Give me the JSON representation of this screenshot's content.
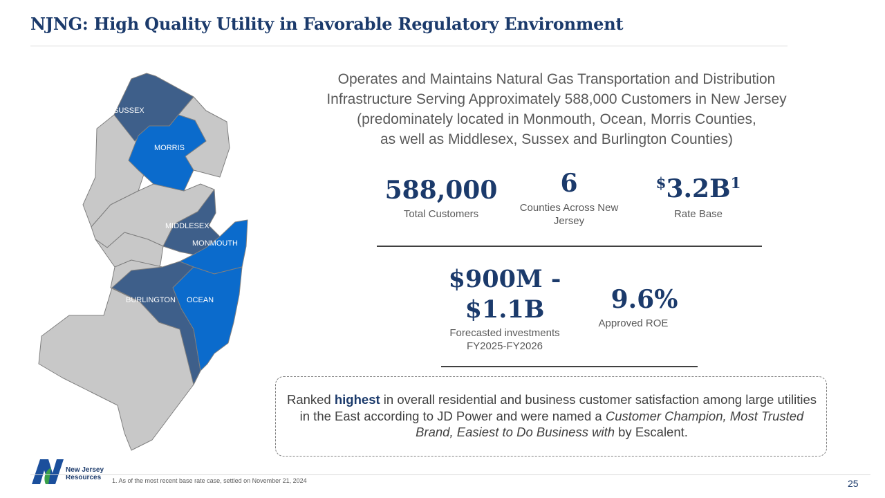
{
  "title": "NJNG: High Quality Utility in Favorable Regulatory Environment",
  "intro": {
    "line1": "Operates and Maintains Natural Gas Transportation and Distribution",
    "line2": "Infrastructure Serving Approximately 588,000 Customers in New Jersey",
    "line3": "(predominately located in Monmouth, Ocean, Morris Counties,",
    "line4": "as well as Middlesex, Sussex and Burlington Counties)"
  },
  "stats": {
    "customers": {
      "value": "588,000",
      "label": "Total Customers"
    },
    "counties": {
      "value": "6",
      "label_line1": "Counties Across New",
      "label_line2": "Jersey"
    },
    "rate_base": {
      "prefix": "$",
      "value": "3.2B",
      "footnote_marker": "1",
      "label": "Rate Base"
    },
    "investments": {
      "value_line1": "$900M -",
      "value_line2": "$1.1B",
      "label_line1": "Forecasted investments",
      "label_line2": "FY2025-FY2026"
    },
    "roe": {
      "value": "9.6%",
      "label": "Approved ROE"
    }
  },
  "callout": {
    "part1": "Ranked ",
    "bold": "highest",
    "part2": " in overall residential and business customer satisfaction among large utilities in the East according to JD Power and were named a ",
    "italic": "Customer Champion, Most Trusted Brand, Easiest to Do Business with",
    "part3": " by Escalent."
  },
  "map": {
    "counties": {
      "sussex": "SUSSEX",
      "morris": "MORRIS",
      "middlesex": "MIDDLESEX",
      "monmouth": "MONMOUTH",
      "burlington": "BURLINGTON",
      "ocean": "OCEAN"
    },
    "colors": {
      "dark": "#3e5f8a",
      "bright": "#0b6bcc",
      "grey": "#c8c8c8",
      "outline": "#7f7f7f"
    }
  },
  "logo": {
    "line1": "New Jersey",
    "line2": "Resources",
    "letter": "N"
  },
  "footnote": "1.    As of the most recent base rate case, settled on November 21, 2024",
  "page_number": "25"
}
